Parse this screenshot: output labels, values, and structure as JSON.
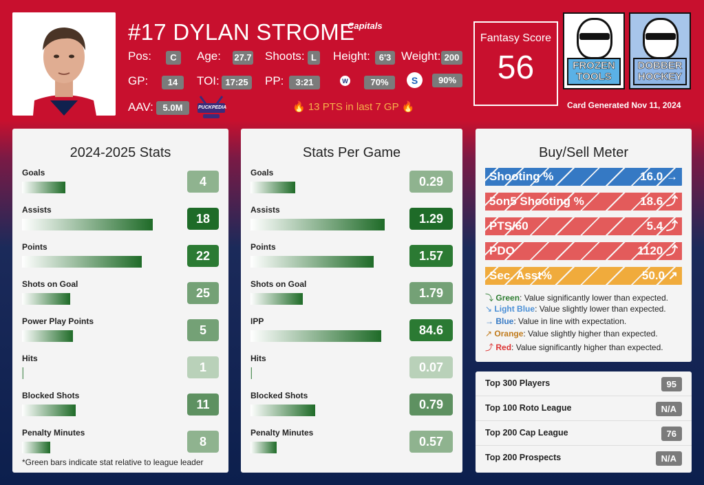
{
  "player": {
    "title": "#17 DYLAN STROME",
    "team_logo_text": "Capitals",
    "pos_label": "Pos:",
    "pos": "C",
    "age_label": "Age:",
    "age": "27.7",
    "shoots_label": "Shoots:",
    "shoots": "L",
    "height_label": "Height:",
    "height": "6'3",
    "weight_label": "Weight:",
    "weight": "200",
    "gp_label": "GP:",
    "gp": "14",
    "toi_label": "TOI:",
    "toi": "17:25",
    "pp_label": "PP:",
    "pp": "3:21",
    "wpct": "70%",
    "spct": "90%",
    "aav_label": "AAV:",
    "aav": "5.0M",
    "puckpedia_text": "PUCKPEDIA",
    "hot_text": "🔥 13 PTS in last 7 GP 🔥"
  },
  "fantasy": {
    "label": "Fantasy Score",
    "value": "56"
  },
  "brands": {
    "frozen": "FROZEN TOOLS",
    "dobber": "DOBBER HOCKEY"
  },
  "card_generated": "Card Generated Nov 11, 2024",
  "stats": {
    "title": "2024-2025 Stats",
    "rows": [
      {
        "label": "Goals",
        "value": "4",
        "pct": 0.29,
        "color": "#8fb38f"
      },
      {
        "label": "Assists",
        "value": "18",
        "pct": 0.87,
        "color": "#1e6b28"
      },
      {
        "label": "Points",
        "value": "22",
        "pct": 0.8,
        "color": "#2b7a33"
      },
      {
        "label": "Shots on Goal",
        "value": "25",
        "pct": 0.32,
        "color": "#74a176"
      },
      {
        "label": "Power Play Points",
        "value": "5",
        "pct": 0.34,
        "color": "#74a176"
      },
      {
        "label": "Hits",
        "value": "1",
        "pct": 0.01,
        "color": "#b9d1b9"
      },
      {
        "label": "Blocked Shots",
        "value": "11",
        "pct": 0.36,
        "color": "#5e9161"
      },
      {
        "label": "Penalty Minutes",
        "value": "8",
        "pct": 0.19,
        "color": "#8fb38f"
      }
    ],
    "footnote": "*Green bars indicate stat relative to league leader"
  },
  "per_game": {
    "title": "Stats Per Game",
    "rows": [
      {
        "label": "Goals",
        "value": "0.29",
        "pct": 0.29,
        "color": "#8fb38f"
      },
      {
        "label": "Assists",
        "value": "1.29",
        "pct": 0.87,
        "color": "#1e6b28"
      },
      {
        "label": "Points",
        "value": "1.57",
        "pct": 0.8,
        "color": "#2b7a33"
      },
      {
        "label": "Shots on Goal",
        "value": "1.79",
        "pct": 0.34,
        "color": "#74a176"
      },
      {
        "label": "IPP",
        "value": "84.6",
        "pct": 0.85,
        "color": "#2b7a33"
      },
      {
        "label": "Hits",
        "value": "0.07",
        "pct": 0.01,
        "color": "#b9d1b9"
      },
      {
        "label": "Blocked Shots",
        "value": "0.79",
        "pct": 0.42,
        "color": "#5e9161"
      },
      {
        "label": "Penalty Minutes",
        "value": "0.57",
        "pct": 0.17,
        "color": "#8fb38f"
      }
    ]
  },
  "meter": {
    "title": "Buy/Sell Meter",
    "items": [
      {
        "label": "Shooting %",
        "value": "16.0",
        "arrow": "→",
        "color": "#3579c4"
      },
      {
        "label": "5on5 Shooting %",
        "value": "18.6",
        "arrow": "⤴",
        "color": "#e35b5b"
      },
      {
        "label": "PTS/60",
        "value": "5.4",
        "arrow": "⤴",
        "color": "#e35b5b"
      },
      {
        "label": "PDO",
        "value": "1120",
        "arrow": "⤴",
        "color": "#e35b5b"
      },
      {
        "label": "Sec. Asst%",
        "value": "50.0",
        "arrow": "↗",
        "color": "#f0ab3c"
      }
    ],
    "legend": [
      {
        "icon": "⤵",
        "name": "Green",
        "text": ": Value significantly lower than expected.",
        "color": "#2e7d32"
      },
      {
        "icon": "↘",
        "name": "Light Blue",
        "text": ": Value slightly lower than expected.",
        "color": "#4a8fd6"
      },
      {
        "icon": "→",
        "name": "Blue",
        "text": ": Value in line with expectation.",
        "color": "#3579c4"
      },
      {
        "icon": "↗",
        "name": "Orange",
        "text": ": Value slightly higher than expected.",
        "color": "#c07a1a"
      },
      {
        "icon": "⤴",
        "name": "Red",
        "text": ": Value significantly higher than expected.",
        "color": "#d33"
      }
    ]
  },
  "rankings": [
    {
      "label": "Top 300 Players",
      "value": "95"
    },
    {
      "label": "Top 100 Roto League",
      "value": "N/A"
    },
    {
      "label": "Top 200 Cap League",
      "value": "76"
    },
    {
      "label": "Top 200 Prospects",
      "value": "N/A"
    }
  ]
}
